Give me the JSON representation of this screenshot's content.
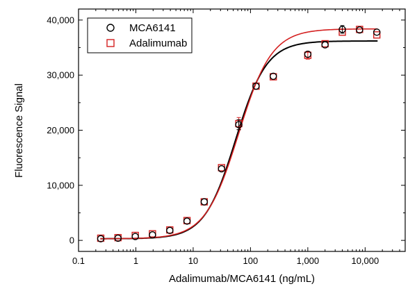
{
  "chart_data": {
    "type": "scatter",
    "xscale": "log",
    "xlabel": "Adalimumab/MCA6141 (ng/mL)",
    "ylabel": "Fluorescence Signal",
    "xlim": [
      0.1,
      50000
    ],
    "ylim": [
      -2000,
      42000
    ],
    "xticks": [
      {
        "value": 0.1,
        "label": "0.1"
      },
      {
        "value": 1,
        "label": "1"
      },
      {
        "value": 10,
        "label": "10"
      },
      {
        "value": 100,
        "label": "100"
      },
      {
        "value": 1000,
        "label": "1,000"
      },
      {
        "value": 10000,
        "label": "10,000"
      }
    ],
    "yticks": [
      {
        "value": 0,
        "label": "0"
      },
      {
        "value": 10000,
        "label": "10,000"
      },
      {
        "value": 20000,
        "label": "20,000"
      },
      {
        "value": 30000,
        "label": "30,000"
      },
      {
        "value": 40000,
        "label": "40,000"
      }
    ],
    "legend_position": "top-left",
    "series": [
      {
        "name": "MCA6141",
        "marker": "circle",
        "color": "#000000",
        "x": [
          0.244,
          0.488,
          0.977,
          1.95,
          3.91,
          7.81,
          15.6,
          31.25,
          62.5,
          125,
          250,
          1000,
          2000,
          4000,
          8000,
          16000
        ],
        "y": [
          300,
          400,
          700,
          1000,
          1800,
          3500,
          7000,
          13000,
          21000,
          28000,
          29800,
          33800,
          35500,
          38300,
          38200,
          37800
        ],
        "err": [
          0,
          0,
          0,
          0,
          0,
          0,
          0,
          0,
          900,
          0,
          0,
          0,
          0,
          700,
          0,
          0
        ],
        "fit": {
          "bottom": 300,
          "top": 36200,
          "ec50": 55,
          "hill": 1.6
        }
      },
      {
        "name": "Adalimumab",
        "marker": "square",
        "color": "#d42020",
        "x": [
          0.244,
          0.488,
          0.977,
          1.95,
          3.91,
          7.81,
          15.6,
          31.25,
          62.5,
          125,
          250,
          1000,
          2000,
          4000,
          8000,
          16000
        ],
        "y": [
          400,
          500,
          900,
          1200,
          1900,
          3600,
          7000,
          13200,
          21200,
          28000,
          29700,
          33600,
          35700,
          37800,
          38300,
          37300
        ],
        "err": [
          0,
          0,
          0,
          0,
          0,
          0,
          0,
          0,
          1100,
          0,
          0,
          700,
          0,
          0,
          0,
          0
        ],
        "fit": {
          "bottom": 300,
          "top": 38400,
          "ec50": 62,
          "hill": 1.5
        }
      }
    ]
  }
}
